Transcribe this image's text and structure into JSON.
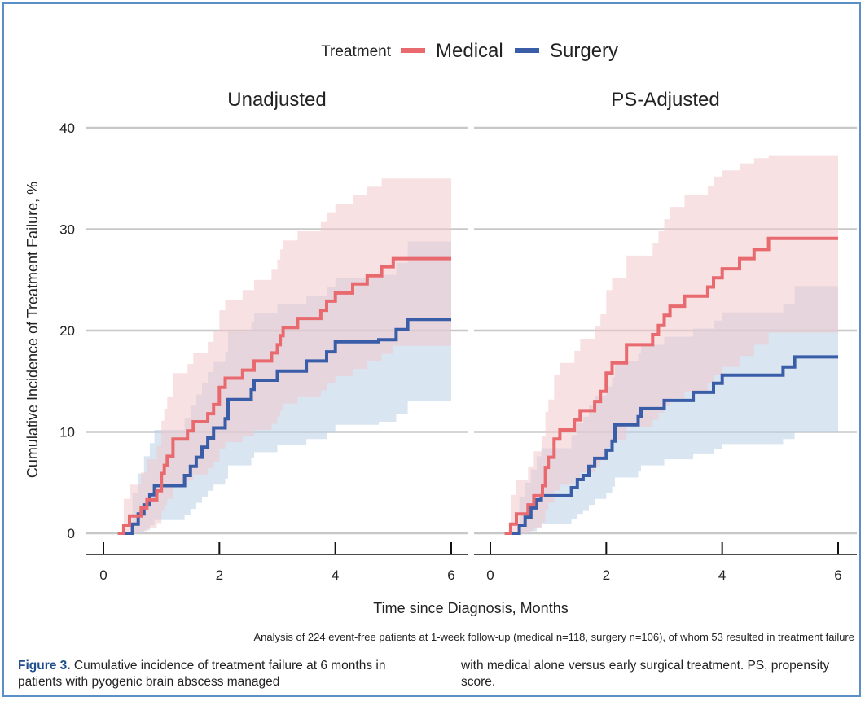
{
  "legend": {
    "title": "Treatment",
    "placement": "top"
  },
  "colors": {
    "medical": "#e8696e",
    "surgery": "#3a5da8",
    "grid": "#c8c8c8",
    "frame": "#5b8fc7"
  },
  "x_axis_title": "Time since Diagnosis, Months",
  "y_axis_title": "Cumulative Incidence of Treatment Failure, %",
  "footnote": "Analysis of 224 event-free patients at 1-week follow-up (medical n=118, surgery n=106), of whom 53 resulted in treatment failure",
  "caption": {
    "label": "Figure 3.",
    "text_left": "Cumulative incidence of treatment failure at 6 months in patients with pyogenic brain abscess managed",
    "text_right": "with medical alone versus early surgical treatment. PS, propensity score."
  },
  "chart_data": [
    {
      "type": "line",
      "title": "Unadjusted",
      "xlabel": "Time since Diagnosis, Months",
      "ylabel": "Cumulative Incidence of Treatment Failure, %",
      "xlim": [
        0,
        6
      ],
      "ylim": [
        0,
        40
      ],
      "x_ticks": [
        0,
        2,
        4,
        6
      ],
      "y_ticks": [
        0,
        10,
        20,
        30,
        40
      ],
      "grid": true,
      "series": [
        {
          "name": "Medical",
          "x": [
            0.25,
            0.35,
            0.45,
            0.55,
            0.65,
            0.75,
            0.85,
            0.92,
            1.0,
            1.05,
            1.1,
            1.2,
            1.35,
            1.45,
            1.55,
            1.7,
            1.8,
            1.9,
            2.0,
            2.1,
            2.25,
            2.4,
            2.6,
            2.8,
            2.9,
            3.0,
            3.05,
            3.1,
            3.35,
            3.55,
            3.75,
            3.85,
            4.0,
            4.3,
            4.55,
            4.8,
            5.0,
            6.0
          ],
          "y": [
            0,
            0.8,
            1.7,
            1.7,
            2.5,
            3.3,
            3.3,
            4.2,
            5.9,
            6.7,
            7.6,
            9.3,
            9.3,
            10.1,
            11.0,
            11.0,
            11.8,
            12.7,
            14.4,
            15.3,
            15.3,
            16.1,
            17.0,
            17.0,
            17.8,
            18.6,
            19.5,
            20.3,
            21.2,
            21.2,
            22.0,
            22.9,
            23.7,
            24.6,
            25.4,
            26.3,
            27.1,
            27.1
          ],
          "upper": [
            0,
            3.4,
            4.8,
            4.8,
            6.0,
            7.3,
            7.3,
            8.6,
            11.1,
            12.3,
            13.5,
            15.8,
            15.8,
            16.7,
            17.8,
            17.8,
            18.9,
            19.9,
            22.0,
            23.0,
            23.0,
            24.0,
            25.0,
            25.0,
            26.0,
            27.0,
            28.0,
            28.9,
            29.8,
            29.8,
            30.7,
            31.6,
            32.5,
            33.4,
            34.2,
            35.0,
            35.0,
            35.0
          ],
          "lower": [
            0,
            0,
            0,
            0,
            0.2,
            0.5,
            0.5,
            1.0,
            2.2,
            2.8,
            3.4,
            4.6,
            4.6,
            5.2,
            5.8,
            5.8,
            6.4,
            7.0,
            8.3,
            9.0,
            9.0,
            9.6,
            10.2,
            10.2,
            10.8,
            11.5,
            12.1,
            12.8,
            13.5,
            13.5,
            14.1,
            14.8,
            15.5,
            16.2,
            17.0,
            17.7,
            18.5,
            18.5
          ]
        },
        {
          "name": "Surgery",
          "x": [
            0.25,
            0.5,
            0.6,
            0.7,
            0.8,
            0.88,
            0.95,
            1.4,
            1.5,
            1.6,
            1.7,
            1.8,
            1.9,
            2.1,
            2.15,
            2.3,
            2.55,
            2.6,
            2.9,
            3.0,
            3.25,
            3.5,
            3.7,
            3.85,
            4.0,
            4.75,
            5.05,
            5.25,
            6.0
          ],
          "y": [
            0,
            0.9,
            1.9,
            2.8,
            3.8,
            4.7,
            4.7,
            5.7,
            6.6,
            7.5,
            8.5,
            9.4,
            10.4,
            11.3,
            13.2,
            13.2,
            14.2,
            15.1,
            15.1,
            16.0,
            16.0,
            17.0,
            17.0,
            17.9,
            18.9,
            19.1,
            20.1,
            21.1,
            21.1
          ],
          "upper": [
            0,
            4.0,
            5.9,
            7.6,
            8.9,
            10.2,
            10.2,
            11.4,
            12.6,
            13.7,
            14.8,
            15.9,
            16.9,
            17.9,
            19.9,
            19.9,
            20.8,
            21.7,
            21.7,
            22.6,
            22.6,
            23.4,
            23.4,
            24.3,
            25.2,
            25.5,
            26.7,
            28.8,
            28.8
          ],
          "lower": [
            0,
            0,
            0,
            0.3,
            0.8,
            1.3,
            1.3,
            1.8,
            2.4,
            3.0,
            3.6,
            4.2,
            4.8,
            5.4,
            6.7,
            6.7,
            7.4,
            8.0,
            8.0,
            8.7,
            8.7,
            9.3,
            9.3,
            10.0,
            10.7,
            11.0,
            11.8,
            13.0,
            13.0
          ]
        }
      ]
    },
    {
      "type": "line",
      "title": "PS-Adjusted",
      "xlabel": "Time since Diagnosis, Months",
      "ylabel": "Cumulative Incidence of Treatment Failure, %",
      "xlim": [
        0,
        6
      ],
      "ylim": [
        0,
        40
      ],
      "x_ticks": [
        0,
        2,
        4,
        6
      ],
      "y_ticks": [
        0,
        10,
        20,
        30,
        40
      ],
      "grid": true,
      "series": [
        {
          "name": "Medical",
          "x": [
            0.25,
            0.35,
            0.45,
            0.55,
            0.65,
            0.75,
            0.85,
            0.9,
            0.95,
            1.0,
            1.1,
            1.2,
            1.35,
            1.45,
            1.55,
            1.7,
            1.8,
            1.9,
            2.0,
            2.1,
            2.35,
            2.6,
            2.8,
            2.9,
            3.0,
            3.1,
            3.35,
            3.55,
            3.75,
            3.85,
            4.0,
            4.3,
            4.55,
            4.8,
            6.0
          ],
          "y": [
            0,
            0.9,
            1.9,
            1.9,
            2.8,
            3.7,
            3.7,
            4.7,
            6.5,
            7.5,
            9.3,
            10.2,
            10.2,
            11.2,
            12.1,
            12.1,
            13.0,
            14.0,
            15.8,
            16.8,
            18.6,
            18.6,
            19.6,
            20.5,
            21.5,
            22.4,
            23.4,
            23.4,
            24.3,
            25.2,
            26.1,
            27.1,
            28.0,
            29.1,
            29.1
          ],
          "upper": [
            0,
            3.8,
            5.3,
            5.3,
            6.6,
            8.1,
            8.1,
            9.6,
            12.0,
            13.2,
            15.6,
            16.8,
            16.8,
            18.0,
            19.2,
            19.2,
            20.4,
            21.6,
            24.0,
            25.2,
            27.4,
            27.4,
            28.6,
            29.8,
            31.0,
            32.2,
            33.4,
            33.4,
            34.3,
            35.2,
            35.8,
            36.5,
            37.0,
            37.3,
            37.3
          ],
          "lower": [
            0,
            0,
            0,
            0,
            0.2,
            0.5,
            0.5,
            1.1,
            2.3,
            3.0,
            4.2,
            4.8,
            4.8,
            5.4,
            6.0,
            6.0,
            6.6,
            7.2,
            8.5,
            9.2,
            10.5,
            10.5,
            11.2,
            11.9,
            12.6,
            13.3,
            14.0,
            14.0,
            14.8,
            15.6,
            16.4,
            17.5,
            18.6,
            19.8,
            19.8
          ]
        },
        {
          "name": "Surgery",
          "x": [
            0.25,
            0.5,
            0.6,
            0.7,
            0.8,
            0.88,
            0.95,
            1.4,
            1.5,
            1.6,
            1.7,
            1.8,
            1.9,
            2.0,
            2.1,
            2.15,
            2.3,
            2.55,
            2.6,
            2.9,
            3.0,
            3.25,
            3.5,
            3.7,
            3.85,
            4.0,
            4.75,
            5.05,
            5.25,
            6.0
          ],
          "y": [
            0,
            0.8,
            1.6,
            2.5,
            3.3,
            3.7,
            3.7,
            4.5,
            5.3,
            5.7,
            6.6,
            7.4,
            7.4,
            8.2,
            9.1,
            10.7,
            10.7,
            11.5,
            12.3,
            12.3,
            13.1,
            13.1,
            13.9,
            13.9,
            14.8,
            15.6,
            15.6,
            16.4,
            17.4,
            17.4
          ],
          "upper": [
            0,
            3.6,
            5.0,
            6.3,
            7.6,
            8.4,
            8.4,
            9.7,
            10.9,
            11.5,
            12.6,
            13.6,
            13.6,
            14.5,
            15.4,
            17.0,
            17.0,
            17.8,
            18.6,
            18.6,
            19.4,
            19.4,
            20.2,
            20.2,
            21.0,
            21.8,
            21.8,
            22.6,
            24.4,
            24.4
          ],
          "lower": [
            0,
            0,
            0,
            0.2,
            0.6,
            0.9,
            0.9,
            1.4,
            1.9,
            2.2,
            2.8,
            3.4,
            3.4,
            4.0,
            4.6,
            5.5,
            5.5,
            6.1,
            6.7,
            6.7,
            7.3,
            7.3,
            7.8,
            7.8,
            8.3,
            8.8,
            8.8,
            9.3,
            10.0,
            10.0
          ]
        }
      ]
    }
  ]
}
